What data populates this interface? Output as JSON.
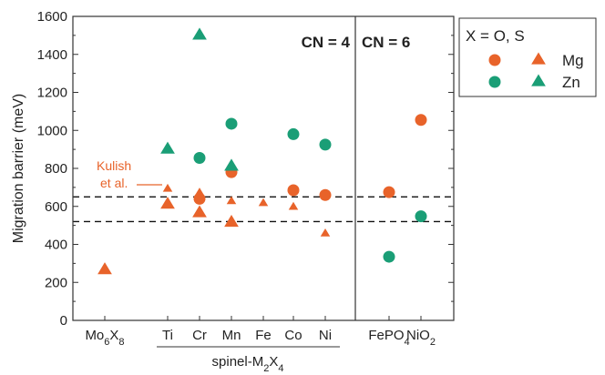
{
  "colors": {
    "mg": "#e8632a",
    "zn": "#1a9e76",
    "axis": "#333333",
    "dash": "#111111"
  },
  "chart_data": {
    "type": "scatter",
    "ylabel": "Migration barrier (meV)",
    "ylim": [
      0,
      1600
    ],
    "yticks": [
      0,
      200,
      400,
      600,
      800,
      1000,
      1200,
      1400,
      1600
    ],
    "categories": [
      {
        "key": "mo6x8",
        "label_parts": [
          [
            "Mo",
            0
          ],
          [
            "6",
            1
          ],
          [
            "X",
            0
          ],
          [
            "8",
            1
          ]
        ]
      },
      {
        "key": "ti",
        "label_parts": [
          [
            "Ti",
            0
          ]
        ]
      },
      {
        "key": "cr",
        "label_parts": [
          [
            "Cr",
            0
          ]
        ]
      },
      {
        "key": "mn",
        "label_parts": [
          [
            "Mn",
            0
          ]
        ]
      },
      {
        "key": "fe",
        "label_parts": [
          [
            "Fe",
            0
          ]
        ]
      },
      {
        "key": "co",
        "label_parts": [
          [
            "Co",
            0
          ]
        ]
      },
      {
        "key": "ni",
        "label_parts": [
          [
            "Ni",
            0
          ]
        ]
      },
      {
        "key": "fepo4",
        "label_parts": [
          [
            "FePO",
            0
          ],
          [
            "4",
            1
          ]
        ]
      },
      {
        "key": "nio2",
        "label_parts": [
          [
            "NiO",
            0
          ],
          [
            "2",
            1
          ]
        ]
      }
    ],
    "group_label_parts": [
      [
        "spinel-M",
        0
      ],
      [
        "2",
        1
      ],
      [
        "X",
        0
      ],
      [
        "4",
        1
      ]
    ],
    "region_labels": [
      "CN = 4",
      "CN = 6"
    ],
    "reference_lines": [
      650,
      520
    ],
    "annotation": [
      "Kulish",
      "et al."
    ],
    "legend": {
      "header": "X = O,   S",
      "entries": [
        "Mg",
        "Zn"
      ]
    },
    "series": [
      {
        "ion": "Mg",
        "x": "O",
        "points": [
          {
            "cat": "cr",
            "y": 640
          },
          {
            "cat": "mn",
            "y": 780
          },
          {
            "cat": "co",
            "y": 685
          },
          {
            "cat": "ni",
            "y": 660
          },
          {
            "cat": "fepo4",
            "y": 675
          },
          {
            "cat": "nio2",
            "y": 1055
          }
        ]
      },
      {
        "ion": "Zn",
        "x": "O",
        "points": [
          {
            "cat": "cr",
            "y": 855
          },
          {
            "cat": "mn",
            "y": 1035
          },
          {
            "cat": "co",
            "y": 980
          },
          {
            "cat": "ni",
            "y": 925
          },
          {
            "cat": "fepo4",
            "y": 335
          },
          {
            "cat": "nio2",
            "y": 548
          }
        ]
      },
      {
        "ion": "Mg",
        "x": "S",
        "points": [
          {
            "cat": "mo6x8",
            "y": 270,
            "size": "large"
          },
          {
            "cat": "ti",
            "y": 615,
            "size": "large"
          },
          {
            "cat": "ti",
            "y": 695,
            "size": "small"
          },
          {
            "cat": "cr",
            "y": 570,
            "size": "large"
          },
          {
            "cat": "cr",
            "y": 675,
            "size": "small"
          },
          {
            "cat": "mn",
            "y": 520,
            "size": "large"
          },
          {
            "cat": "mn",
            "y": 630,
            "size": "small"
          },
          {
            "cat": "fe",
            "y": 620,
            "size": "small"
          },
          {
            "cat": "co",
            "y": 600,
            "size": "small"
          },
          {
            "cat": "ni",
            "y": 460,
            "size": "small"
          }
        ]
      },
      {
        "ion": "Zn",
        "x": "S",
        "points": [
          {
            "cat": "ti",
            "y": 905,
            "size": "large"
          },
          {
            "cat": "cr",
            "y": 1505,
            "size": "large"
          },
          {
            "cat": "mn",
            "y": 815,
            "size": "large"
          }
        ]
      }
    ]
  }
}
